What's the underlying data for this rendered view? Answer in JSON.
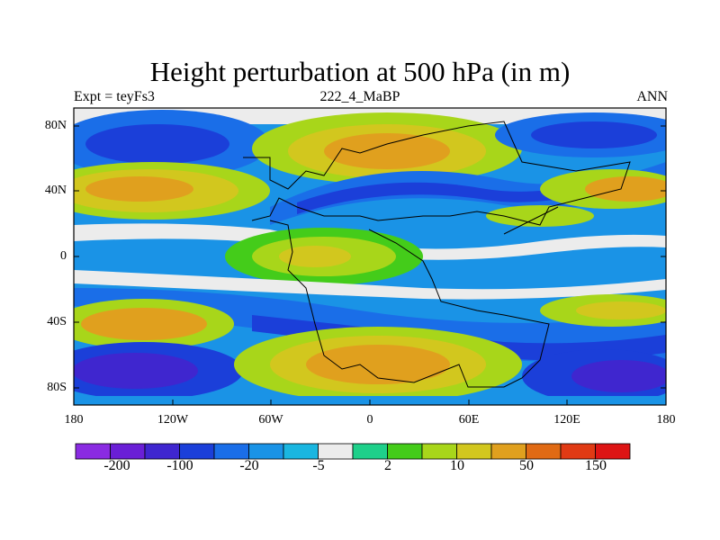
{
  "title": "Height perturbation at 500 hPa (in m)",
  "left_string": "Expt = teyFs3",
  "center_string": "222_4_MaBP",
  "right_string": "ANN",
  "lat_ticks": [
    "80N",
    "40N",
    "0",
    "40S",
    "80S"
  ],
  "lon_ticks": [
    "180",
    "120W",
    "60W",
    "0",
    "60E",
    "120E",
    "180"
  ],
  "colorbar": {
    "colors": [
      "#8a2be2",
      "#6a1fd6",
      "#3f26cf",
      "#1b3fd9",
      "#1a6ee8",
      "#1a93e6",
      "#1ab6e0",
      "#ececec",
      "#1ed08a",
      "#44cc1a",
      "#a8d61a",
      "#d2c71e",
      "#e0a01e",
      "#e06a14",
      "#e03a14",
      "#dd1414"
    ],
    "labels": [
      "-200",
      "-100",
      "-20",
      "-5",
      "2",
      "10",
      "50",
      "150"
    ]
  }
}
